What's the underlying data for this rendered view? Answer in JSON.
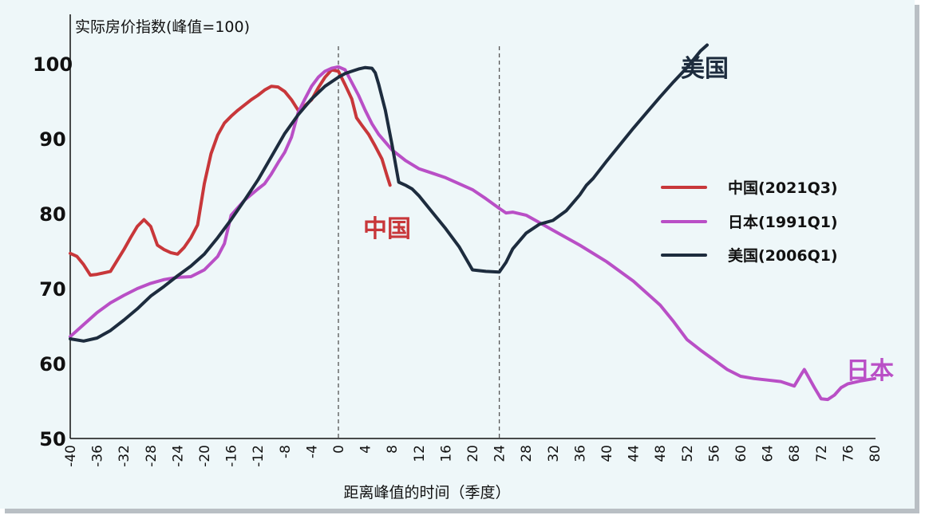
{
  "chart_data": {
    "type": "line",
    "ylabel": "实际房价指数(峰值=100)",
    "xlabel": "距离峰值的时间（季度）",
    "xlim": [
      -40,
      82
    ],
    "ylim": [
      50,
      110
    ],
    "yticks": [
      50,
      60,
      70,
      80,
      90,
      100,
      110
    ],
    "xticks": [
      -40,
      -36,
      -32,
      -28,
      -24,
      -20,
      -16,
      -12,
      -8,
      -4,
      0,
      4,
      8,
      12,
      16,
      20,
      24,
      28,
      32,
      36,
      40,
      44,
      48,
      52,
      56,
      60,
      64,
      68,
      72,
      76,
      80
    ],
    "reference_lines_x": [
      0,
      24
    ],
    "legend_position": "right",
    "series": [
      {
        "name": "中国(2021Q3)",
        "color": "#c8373a",
        "annotation": "中国",
        "points": [
          [
            -40,
            74.7
          ],
          [
            -39,
            74.3
          ],
          [
            -38,
            73.2
          ],
          [
            -37,
            71.8
          ],
          [
            -36,
            71.9
          ],
          [
            -34,
            72.3
          ],
          [
            -32,
            75.2
          ],
          [
            -31,
            76.8
          ],
          [
            -30,
            78.3
          ],
          [
            -29,
            79.2
          ],
          [
            -28,
            78.3
          ],
          [
            -27,
            75.8
          ],
          [
            -26,
            75.2
          ],
          [
            -25,
            74.8
          ],
          [
            -24,
            74.6
          ],
          [
            -23,
            75.5
          ],
          [
            -22,
            76.8
          ],
          [
            -21,
            78.5
          ],
          [
            -20,
            84
          ],
          [
            -19,
            88
          ],
          [
            -18,
            90.5
          ],
          [
            -17,
            92.1
          ],
          [
            -16,
            93
          ],
          [
            -15,
            93.8
          ],
          [
            -14,
            94.5
          ],
          [
            -13,
            95.2
          ],
          [
            -12,
            95.8
          ],
          [
            -11,
            96.5
          ],
          [
            -10,
            97
          ],
          [
            -9,
            96.9
          ],
          [
            -8,
            96.3
          ],
          [
            -7,
            95.2
          ],
          [
            -6,
            93.8
          ],
          [
            -5,
            94.4
          ],
          [
            -4,
            95.2
          ],
          [
            -3,
            96.8
          ],
          [
            -2,
            98.2
          ],
          [
            -1,
            99.2
          ],
          [
            0,
            99
          ],
          [
            1,
            97.2
          ],
          [
            2,
            95.3
          ],
          [
            2.7,
            92.8
          ],
          [
            3.5,
            91.8
          ],
          [
            4.5,
            90.6
          ],
          [
            5.5,
            89
          ],
          [
            6.5,
            87.3
          ],
          [
            7.2,
            85.2
          ],
          [
            7.7,
            83.8
          ]
        ]
      },
      {
        "name": "日本(1991Q1)",
        "color": "#b94fc6",
        "annotation": "日本",
        "points": [
          [
            -40,
            63.6
          ],
          [
            -38,
            65.2
          ],
          [
            -36,
            66.8
          ],
          [
            -34,
            68.1
          ],
          [
            -32,
            69.1
          ],
          [
            -30,
            70
          ],
          [
            -28,
            70.7
          ],
          [
            -26,
            71.2
          ],
          [
            -24,
            71.5
          ],
          [
            -22,
            71.6
          ],
          [
            -20,
            72.5
          ],
          [
            -18,
            74.3
          ],
          [
            -17,
            76
          ],
          [
            -16,
            79.8
          ],
          [
            -14,
            81.8
          ],
          [
            -12,
            83.3
          ],
          [
            -11,
            84
          ],
          [
            -10,
            85.3
          ],
          [
            -9,
            86.8
          ],
          [
            -8,
            88.2
          ],
          [
            -7,
            90.2
          ],
          [
            -6,
            93.5
          ],
          [
            -5,
            95.3
          ],
          [
            -4,
            97
          ],
          [
            -3,
            98.2
          ],
          [
            -2,
            99
          ],
          [
            -1,
            99.4
          ],
          [
            0,
            99.6
          ],
          [
            1,
            99.2
          ],
          [
            2,
            97.5
          ],
          [
            3,
            95.8
          ],
          [
            4,
            93.8
          ],
          [
            5,
            92
          ],
          [
            6,
            90.6
          ],
          [
            8,
            88.5
          ],
          [
            10,
            87.1
          ],
          [
            12,
            86
          ],
          [
            14,
            85.4
          ],
          [
            16,
            84.8
          ],
          [
            18,
            84
          ],
          [
            20,
            83.2
          ],
          [
            22,
            82
          ],
          [
            24,
            80.7
          ],
          [
            25,
            80.1
          ],
          [
            26,
            80.2
          ],
          [
            28,
            79.8
          ],
          [
            30,
            78.8
          ],
          [
            32,
            77.8
          ],
          [
            36,
            75.8
          ],
          [
            40,
            73.6
          ],
          [
            44,
            71
          ],
          [
            48,
            67.8
          ],
          [
            50,
            65.6
          ],
          [
            52,
            63.2
          ],
          [
            54,
            61.8
          ],
          [
            56,
            60.5
          ],
          [
            58,
            59.2
          ],
          [
            60,
            58.3
          ],
          [
            62,
            58
          ],
          [
            64,
            57.8
          ],
          [
            66,
            57.6
          ],
          [
            68,
            57
          ],
          [
            69,
            58.5
          ],
          [
            69.5,
            59.2
          ],
          [
            71,
            56.8
          ],
          [
            72,
            55.3
          ],
          [
            73,
            55.2
          ],
          [
            74,
            55.8
          ],
          [
            75,
            56.8
          ],
          [
            76,
            57.3
          ],
          [
            78,
            57.7
          ],
          [
            80,
            58
          ]
        ]
      },
      {
        "name": "美国(2006Q1)",
        "color": "#1d2c3e",
        "annotation": "美国",
        "points": [
          [
            -40,
            63.3
          ],
          [
            -38,
            63
          ],
          [
            -36,
            63.4
          ],
          [
            -34,
            64.4
          ],
          [
            -32,
            65.8
          ],
          [
            -30,
            67.3
          ],
          [
            -28,
            69
          ],
          [
            -26,
            70.3
          ],
          [
            -24,
            71.7
          ],
          [
            -22,
            73
          ],
          [
            -20,
            74.6
          ],
          [
            -18,
            76.8
          ],
          [
            -16,
            79.2
          ],
          [
            -14,
            81.8
          ],
          [
            -12,
            84.5
          ],
          [
            -10,
            87.6
          ],
          [
            -8,
            90.7
          ],
          [
            -6,
            93.2
          ],
          [
            -4,
            95.3
          ],
          [
            -2,
            97
          ],
          [
            0,
            98.2
          ],
          [
            1,
            98.7
          ],
          [
            2,
            99
          ],
          [
            3,
            99.3
          ],
          [
            4,
            99.5
          ],
          [
            5,
            99.4
          ],
          [
            5.5,
            98.8
          ],
          [
            6,
            97.3
          ],
          [
            7,
            93.8
          ],
          [
            8,
            89.2
          ],
          [
            9,
            84.2
          ],
          [
            10,
            83.8
          ],
          [
            11,
            83.3
          ],
          [
            12,
            82.4
          ],
          [
            14,
            80.2
          ],
          [
            16,
            78
          ],
          [
            18,
            75.6
          ],
          [
            20,
            72.5
          ],
          [
            22,
            72.3
          ],
          [
            24,
            72.2
          ],
          [
            25,
            73.5
          ],
          [
            26,
            75.3
          ],
          [
            28,
            77.4
          ],
          [
            30,
            78.6
          ],
          [
            32,
            79.1
          ],
          [
            34,
            80.4
          ],
          [
            36,
            82.5
          ],
          [
            37,
            83.8
          ],
          [
            38,
            84.7
          ],
          [
            40,
            87
          ],
          [
            42,
            89.2
          ],
          [
            44,
            91.4
          ],
          [
            46,
            93.5
          ],
          [
            48,
            95.6
          ],
          [
            50,
            97.6
          ],
          [
            52,
            99.5
          ],
          [
            54,
            101.7
          ],
          [
            55,
            102.5
          ]
        ]
      }
    ]
  }
}
